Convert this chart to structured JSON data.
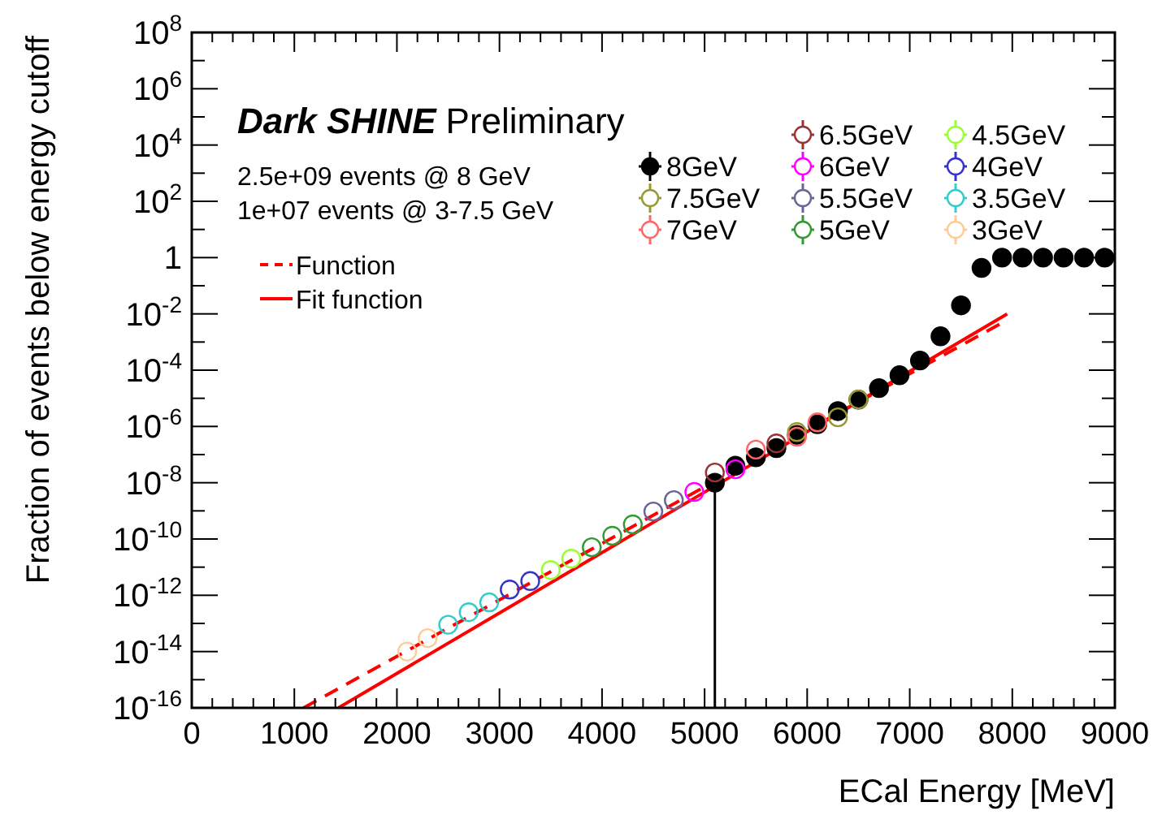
{
  "chart_data": {
    "type": "scatter",
    "xlabel": "ECal Energy [MeV]",
    "ylabel": "Fraction of events below energy cutoff",
    "annotations": [
      "Dark SHINE",
      "Preliminary",
      "2.5e+09 events @ 8 GeV",
      "1e+07 events @ 3-7.5 GeV"
    ],
    "log": "y",
    "xlim": [
      0,
      9000
    ],
    "xticks": [
      0,
      1000,
      2000,
      3000,
      4000,
      5000,
      6000,
      7000,
      8000,
      9000
    ],
    "ylim": [
      1e-16,
      100000000.0
    ],
    "yticks": [
      {
        "value": 1e-16,
        "label": "10$^{-16}$"
      },
      {
        "value": 1e-14,
        "label": "10$^{-14}$"
      },
      {
        "value": 1e-12,
        "label": "10$^{-12}$"
      },
      {
        "value": 1e-10,
        "label": "10$^{-10}$"
      },
      {
        "value": 1e-08,
        "label": "10$^{-8}$"
      },
      {
        "value": 1e-06,
        "label": "10$^{-6}$"
      },
      {
        "value": 0.0001,
        "label": "10$^{-4}$"
      },
      {
        "value": 0.01,
        "label": "10$^{-2}$"
      },
      1,
      {
        "value": 100,
        "label": "10$^{2}$"
      },
      {
        "value": 10000,
        "label": "10$^{4}$"
      },
      {
        "value": 1000000.0,
        "label": "10$^{6}$"
      },
      {
        "value": 100000000.0,
        "label": "10$^{8}$"
      }
    ],
    "grid": false,
    "legend": "top right",
    "marker": "circle",
    "series": [
      {
        "name": "8GeV",
        "color": "#000000",
        "x": [
          5100,
          5300,
          5500,
          5700,
          5900,
          6100,
          6300,
          6500,
          6700,
          6900,
          7100,
          7300,
          7500,
          7700,
          7900,
          8100,
          8300,
          8500,
          8700,
          8900
        ],
        "values": [
          1e-08,
          4e-08,
          8e-08,
          1.7e-07,
          5e-07,
          1.2e-06,
          3.5e-06,
          9e-06,
          2.3e-05,
          6.6e-05,
          0.00022,
          0.0016,
          0.02,
          0.43,
          1,
          1,
          1,
          1,
          1,
          1
        ],
        "errors": [
          [
            1e-16,
            1e-08
          ],
          null,
          null,
          null,
          null,
          null,
          null,
          null,
          null,
          null,
          null,
          null,
          null,
          null,
          null,
          null,
          null,
          null,
          null,
          null
        ]
      },
      {
        "name": "7.5GeV",
        "color": "#999933",
        "x": [
          5900,
          6300,
          6500
        ],
        "values": [
          6.3e-07,
          2.1e-06,
          9.1e-06
        ]
      },
      {
        "name": "7GeV",
        "color": "#ff6666",
        "x": [
          5500,
          5900,
          6100
        ],
        "values": [
          1.5e-07,
          4.3e-07,
          1.4e-06
        ]
      },
      {
        "name": "6.5GeV",
        "color": "#993333",
        "x": [
          5100,
          5700
        ],
        "values": [
          2.3e-08,
          2.5e-07
        ]
      },
      {
        "name": "6GeV",
        "color": "#ff00ff",
        "x": [
          4900,
          5300
        ],
        "values": [
          4.7e-09,
          3e-08
        ]
      },
      {
        "name": "5.5GeV",
        "color": "#666699",
        "x": [
          4500,
          4700
        ],
        "values": [
          9.5e-10,
          2.4e-09
        ]
      },
      {
        "name": "5GeV",
        "color": "#339933",
        "x": [
          3900,
          4100,
          4300
        ],
        "values": [
          5.1e-11,
          1.3e-10,
          3.3e-10
        ]
      },
      {
        "name": "4.5GeV",
        "color": "#99ff33",
        "x": [
          3500,
          3700
        ],
        "values": [
          7.9e-12,
          2e-11
        ]
      },
      {
        "name": "4GeV",
        "color": "#3333cc",
        "x": [
          3100,
          3300
        ],
        "values": [
          1.6e-12,
          3.2e-12
        ]
      },
      {
        "name": "3.5GeV",
        "color": "#33cccc",
        "x": [
          2500,
          2700,
          2900
        ],
        "values": [
          9e-14,
          2.5e-13,
          5.6e-13
        ]
      },
      {
        "name": "3GeV",
        "color": "#ffcc99",
        "x": [
          2100,
          2300
        ],
        "values": [
          1e-14,
          3e-14
        ]
      },
      {
        "name": "Function",
        "type": "line",
        "color": "#ff0000",
        "line_style": "dashed",
        "marker": "none",
        "x": [
          1090,
          7950
        ],
        "values": [
          1e-16,
          0.006
        ]
      },
      {
        "name": "Fit function",
        "type": "line",
        "color": "#ff0000",
        "line_style": "solid",
        "marker": "none",
        "x": [
          1430,
          7950
        ],
        "values": [
          1e-16,
          0.01
        ]
      }
    ]
  }
}
